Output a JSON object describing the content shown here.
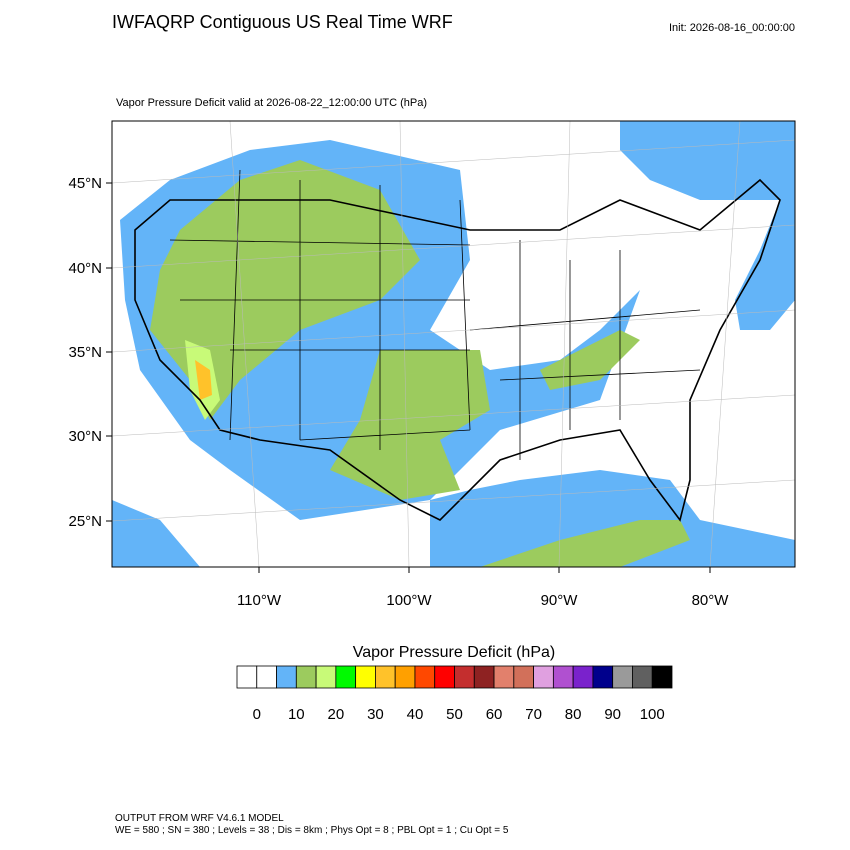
{
  "header": {
    "title": "IWFAQRP Contiguous US Real Time WRF",
    "init": "Init: 2026-08-16_00:00:00",
    "subtitle": "Vapor Pressure Deficit valid at 2026-08-22_12:00:00 UTC   (hPa)"
  },
  "map": {
    "lat_labels": [
      "45°N",
      "40°N",
      "35°N",
      "30°N",
      "25°N"
    ],
    "lon_labels": [
      "110°W",
      "100°W",
      "90°W",
      "80°W"
    ]
  },
  "colorbar": {
    "title": "Vapor Pressure Deficit  (hPa)",
    "colors": [
      "#ffffff",
      "#ffffff",
      "#63b4f8",
      "#9ccb5e",
      "#c8fa78",
      "#00fa00",
      "#ffff00",
      "#ffc22a",
      "#ffa000",
      "#ff4800",
      "#ff0000",
      "#c42e2e",
      "#8e2222",
      "#e2806c",
      "#d2705a",
      "#e0a0e0",
      "#b050d0",
      "#7a22cc",
      "#00008c",
      "#9a9a9a",
      "#606060",
      "#000000"
    ],
    "labels": [
      0,
      10,
      20,
      30,
      40,
      50,
      60,
      70,
      80,
      90,
      100
    ]
  },
  "footer": {
    "line1": "OUTPUT FROM WRF V4.6.1 MODEL",
    "line2": "WE = 580 ; SN = 380 ; Levels = 38 ; Dis = 8km ; Phys Opt = 8 ; PBL Opt = 1 ; Cu Opt = 5"
  }
}
